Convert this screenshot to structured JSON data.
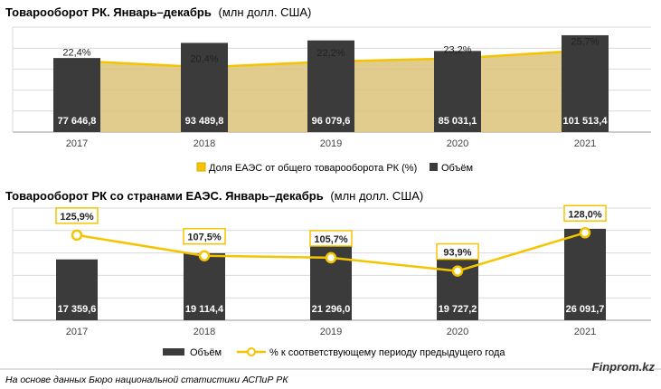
{
  "chart_data": [
    {
      "type": "bar",
      "title": "Товарооборот РК. Январь–декабрь",
      "subtitle": "(млн долл. США)",
      "categories": [
        "2017",
        "2018",
        "2019",
        "2020",
        "2021"
      ],
      "series": [
        {
          "name": "Объём",
          "kind": "bar",
          "values": [
            77646.8,
            93489.8,
            96079.6,
            85031.1,
            101513.4
          ],
          "labels": [
            "77 646,8",
            "93 489,8",
            "96 079,6",
            "85 031,1",
            "101 513,4"
          ]
        },
        {
          "name": "Доля ЕАЭС от общего товарооборота РК (%)",
          "kind": "area",
          "values": [
            22.4,
            20.4,
            22.2,
            23.2,
            25.7
          ],
          "labels": [
            "22,4%",
            "20,4%",
            "22,2%",
            "23,2%",
            "25,7%"
          ]
        }
      ],
      "ylim": [
        0,
        110000
      ],
      "grid": true,
      "legend_position": "bottom"
    },
    {
      "type": "bar",
      "title": "Товарооборот РК со странами ЕАЭС. Январь–декабрь",
      "subtitle": "(млн долл. США)",
      "categories": [
        "2017",
        "2018",
        "2019",
        "2020",
        "2021"
      ],
      "series": [
        {
          "name": "Объём",
          "kind": "bar",
          "values": [
            17359.6,
            19114.4,
            21296.0,
            19727.2,
            26091.7
          ],
          "labels": [
            "17 359,6",
            "19 114,4",
            "21 296,0",
            "19 727,2",
            "26 091,7"
          ]
        },
        {
          "name": "% к соответствующему периоду предыдущего года",
          "kind": "line",
          "values": [
            125.9,
            107.5,
            105.7,
            93.9,
            128.0
          ],
          "labels": [
            "125,9%",
            "107,5%",
            "105,7%",
            "93,9%",
            "128,0%"
          ]
        }
      ],
      "ylim": [
        0,
        32000
      ],
      "grid": true,
      "legend_position": "bottom"
    }
  ],
  "colors": {
    "bar": "#3b3b3b",
    "accent": "#f5c400",
    "area_fill": "#dcc37a",
    "grid": "#d9d9d9",
    "axis": "#9a9a9a"
  },
  "footer": {
    "source": "На основе данных Бюро национальной статистики АСПиР РК",
    "brand": "Finprom.kz"
  }
}
